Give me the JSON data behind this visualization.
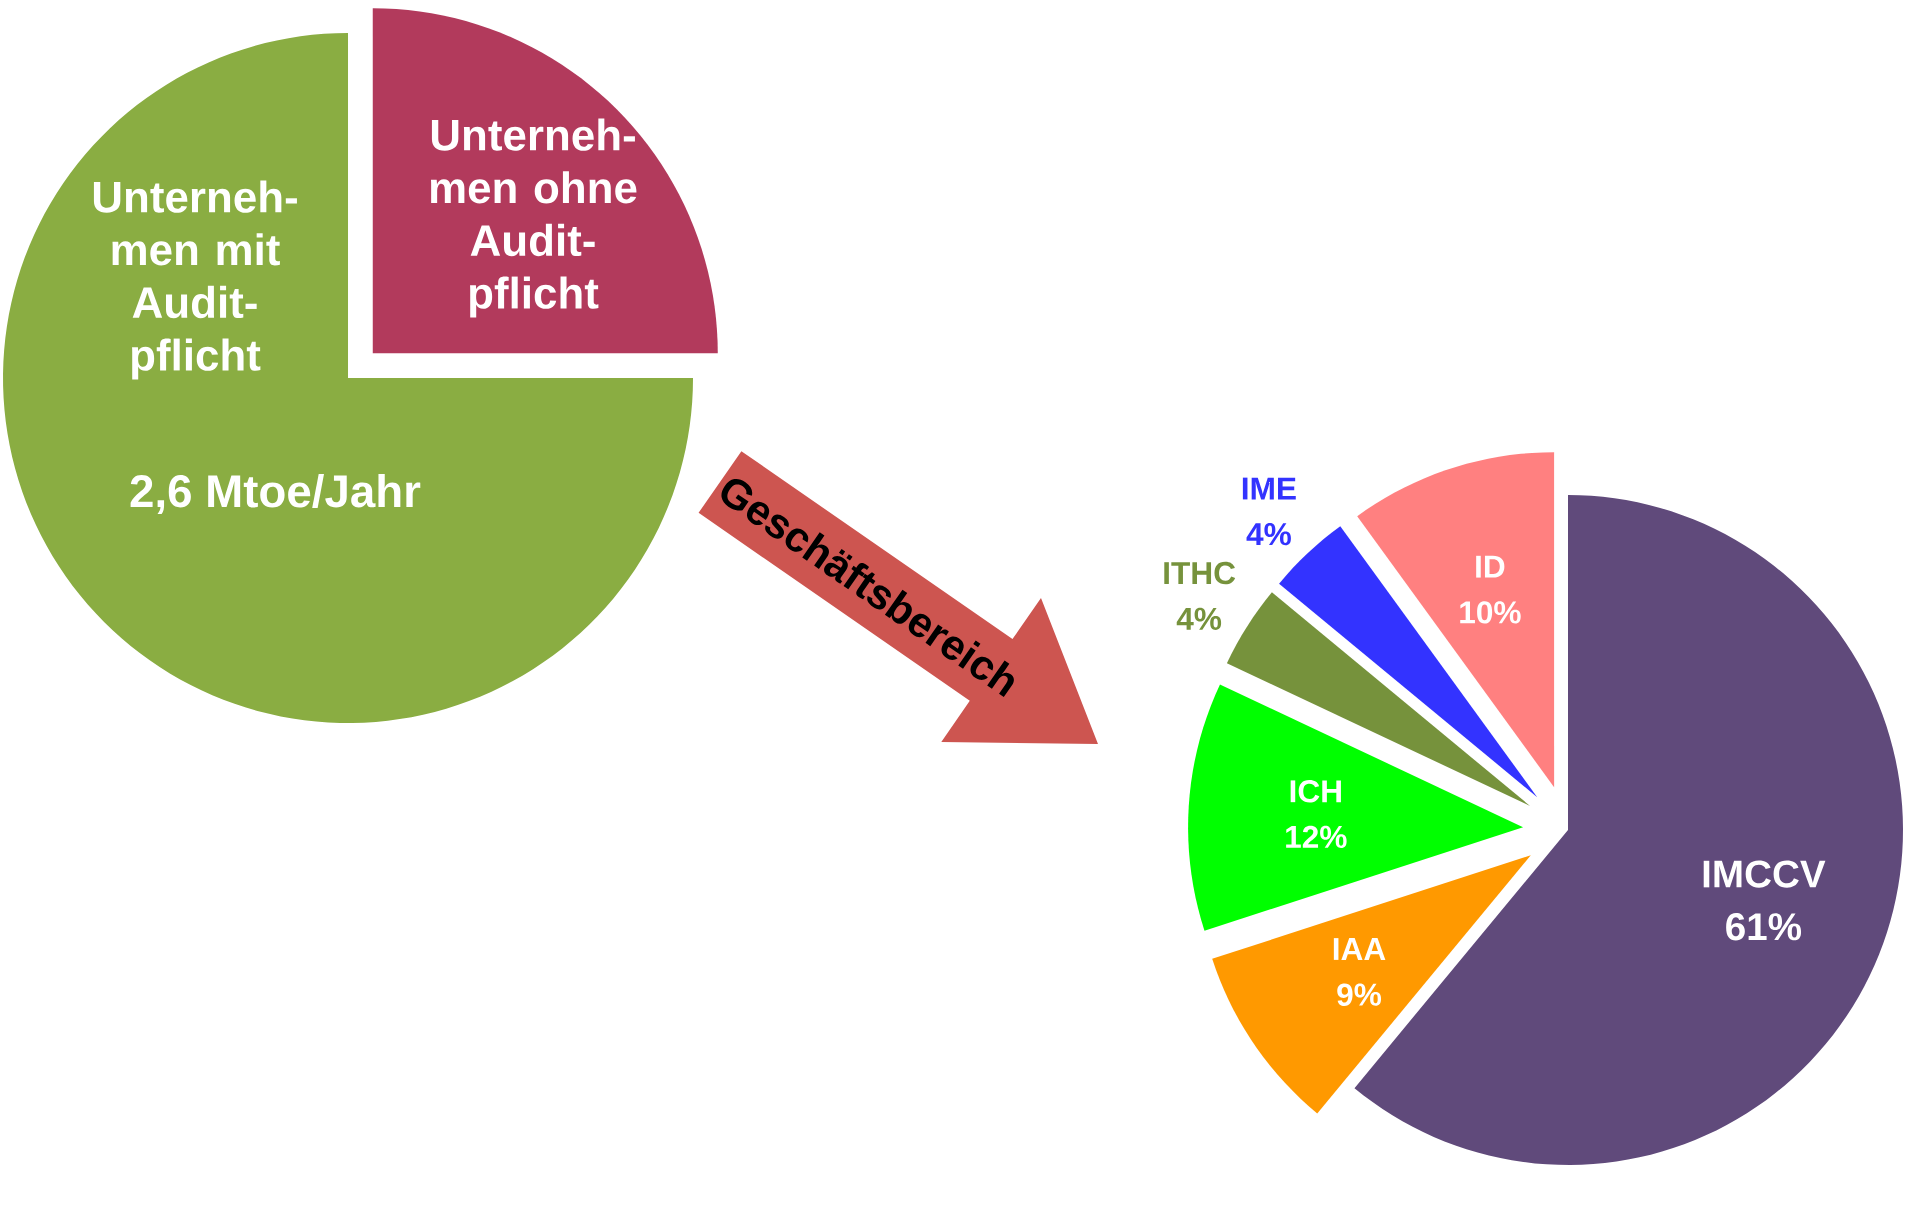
{
  "chart_data": [
    {
      "type": "pie",
      "categories": [
        "Unterneh-men ohne Audit-pflicht",
        "Unterneh-men mit Audit-pflicht"
      ],
      "values": [
        25,
        75
      ],
      "colors": [
        "#b23a5c",
        "#8aad42"
      ],
      "annotations": [
        "2,6 Mtoe/Jahr"
      ]
    },
    {
      "type": "pie",
      "categories": [
        "IMCCV",
        "IAA",
        "ICH",
        "ITHC",
        "IME",
        "ID"
      ],
      "values": [
        61,
        9,
        12,
        4,
        4,
        10
      ],
      "colors": [
        "#604a7b",
        "#ff9900",
        "#00ff00",
        "#76923c",
        "#3333ff",
        "#ff8080"
      ],
      "value_labels": [
        "61%",
        "9%",
        "12%",
        "4%",
        "4%",
        "10%"
      ],
      "annotations": [
        "Geschäftsbereich"
      ]
    }
  ]
}
